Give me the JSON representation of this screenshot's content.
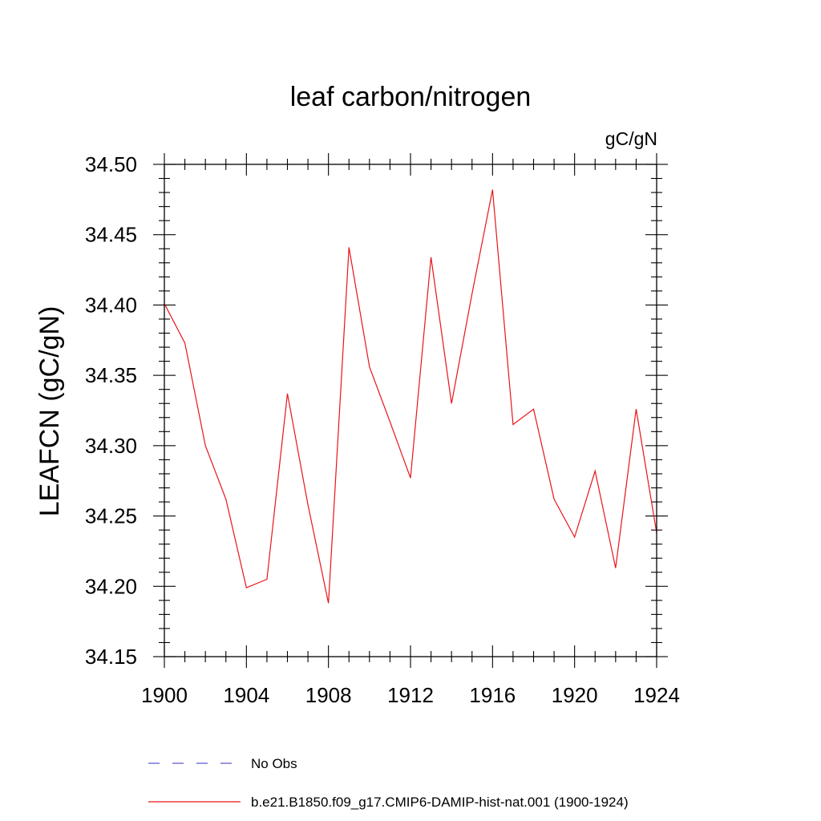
{
  "chart_data": {
    "type": "line",
    "title": "leaf carbon/nitrogen",
    "units": "gC/gN",
    "ylabel": "LEAFCN  (gC/gN)",
    "xlabel": "",
    "xlim": [
      1900,
      1924
    ],
    "ylim": [
      34.15,
      34.5
    ],
    "x_ticks": [
      1900,
      1904,
      1908,
      1912,
      1916,
      1920,
      1924
    ],
    "x_tick_labels": [
      "1900",
      "1904",
      "1908",
      "1912",
      "1916",
      "1920",
      "1924"
    ],
    "y_ticks": [
      34.15,
      34.2,
      34.25,
      34.3,
      34.35,
      34.4,
      34.45,
      34.5
    ],
    "y_tick_labels": [
      "34.15",
      "34.20",
      "34.25",
      "34.30",
      "34.35",
      "34.40",
      "34.45",
      "34.50"
    ],
    "grid": false,
    "legend_position": "bottom",
    "series": [
      {
        "name": "b.e21.B1850.f09_g17.CMIP6-DAMIP-hist-nat.001 (1900-1924)",
        "color": "#e8141b",
        "style": "solid",
        "x": [
          1900,
          1901,
          1902,
          1903,
          1904,
          1905,
          1906,
          1907,
          1908,
          1909,
          1910,
          1911,
          1912,
          1913,
          1914,
          1915,
          1916,
          1917,
          1918,
          1919,
          1920,
          1921,
          1922,
          1923,
          1924
        ],
        "values": [
          34.401,
          34.373,
          34.3,
          34.262,
          34.199,
          34.205,
          34.337,
          34.258,
          34.188,
          34.441,
          34.356,
          34.317,
          34.277,
          34.434,
          34.33,
          34.408,
          34.482,
          34.315,
          34.326,
          34.262,
          34.235,
          34.282,
          34.213,
          34.326,
          34.238
        ]
      }
    ],
    "legend": [
      {
        "name": "No Obs",
        "color": "#5a5acd",
        "style": "dashed"
      },
      {
        "name": "b.e21.B1850.f09_g17.CMIP6-DAMIP-hist-nat.001 (1900-1924)",
        "color": "#e8141b",
        "style": "solid"
      }
    ]
  }
}
